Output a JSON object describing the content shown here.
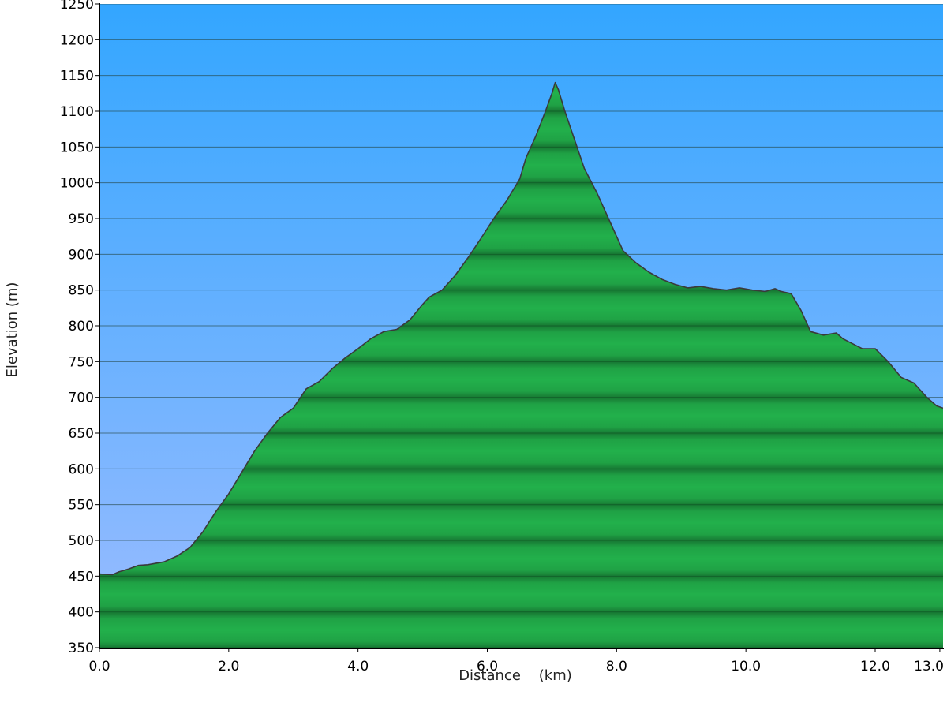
{
  "chart_data": {
    "type": "area",
    "title": "",
    "xlabel": "Distance    (km)",
    "ylabel": "Elevation (m)",
    "xlim": [
      0,
      13.05
    ],
    "ylim": [
      350,
      1250
    ],
    "x_ticks": [
      {
        "value": 0,
        "label": "0.0"
      },
      {
        "value": 2,
        "label": "2.0"
      },
      {
        "value": 4,
        "label": "4.0"
      },
      {
        "value": 6,
        "label": "6.0"
      },
      {
        "value": 8,
        "label": "8.0"
      },
      {
        "value": 10,
        "label": "10.0"
      },
      {
        "value": 12,
        "label": "12.0"
      },
      {
        "value": 13,
        "label": "13.0"
      }
    ],
    "y_ticks": [
      350,
      400,
      450,
      500,
      550,
      600,
      650,
      700,
      750,
      800,
      850,
      900,
      950,
      1000,
      1050,
      1100,
      1150,
      1200,
      1250
    ],
    "grid": true,
    "legend": "none",
    "colors": {
      "sky_top": "#33a6ff",
      "sky_bottom": "#9bbcff",
      "fill_light": "#22b04b",
      "fill_dark": "#157a30",
      "outline": "#3a3a3a",
      "gridline": "#4a5a80"
    },
    "series": [
      {
        "x": [
          0.0,
          0.2,
          0.3,
          0.45,
          0.6,
          0.75,
          1.0,
          1.2,
          1.4,
          1.6,
          1.8,
          2.0,
          2.2,
          2.4,
          2.6,
          2.8,
          3.0,
          3.2,
          3.4,
          3.6,
          3.8,
          4.0,
          4.2,
          4.4,
          4.6,
          4.8,
          5.0,
          5.1,
          5.3,
          5.5,
          5.7,
          5.9,
          6.1,
          6.3,
          6.5,
          6.6,
          6.75,
          6.9,
          7.0,
          7.05,
          7.1,
          7.2,
          7.35,
          7.5,
          7.7,
          7.9,
          8.1,
          8.3,
          8.5,
          8.7,
          8.9,
          9.1,
          9.3,
          9.5,
          9.7,
          9.9,
          10.1,
          10.3,
          10.45,
          10.55,
          10.7,
          10.85,
          11.0,
          11.2,
          11.4,
          11.5,
          11.65,
          11.8,
          12.0,
          12.2,
          12.4,
          12.6,
          12.8,
          12.95,
          13.05
        ],
        "y": [
          453,
          452,
          456,
          460,
          465,
          466,
          470,
          478,
          490,
          512,
          540,
          565,
          595,
          625,
          650,
          672,
          685,
          712,
          722,
          740,
          755,
          768,
          782,
          792,
          795,
          808,
          830,
          840,
          850,
          870,
          895,
          922,
          950,
          975,
          1005,
          1035,
          1065,
          1100,
          1125,
          1140,
          1130,
          1100,
          1060,
          1020,
          985,
          945,
          905,
          888,
          875,
          865,
          858,
          853,
          855,
          852,
          850,
          853,
          850,
          848,
          852,
          848,
          845,
          822,
          792,
          787,
          790,
          782,
          775,
          768,
          768,
          750,
          728,
          720,
          700,
          688,
          685
        ]
      }
    ]
  }
}
